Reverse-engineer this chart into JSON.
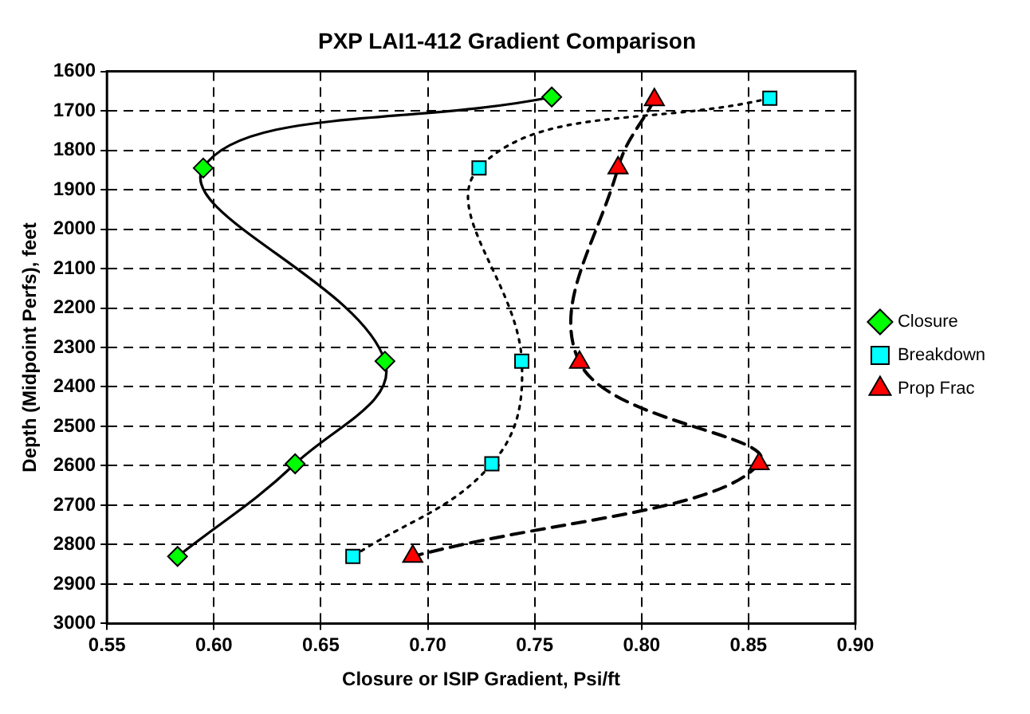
{
  "chart_data": {
    "type": "line",
    "title": "PXP LAI1-412 Gradient Comparison",
    "xlabel": "Closure or ISIP Gradient, Psi/ft",
    "ylabel": "Depth (Midpoint Perfs), feet",
    "series": [
      {
        "name": "Closure",
        "color": "#00ff00",
        "marker": "diamond",
        "line_style": "solid",
        "x": [
          0.758,
          0.595,
          0.68,
          0.638,
          0.583
        ],
        "values": [
          1665,
          1845,
          2335,
          2595,
          2830
        ]
      },
      {
        "name": "Breakdown",
        "color": "#00ffff",
        "marker": "square",
        "line_style": "dotted",
        "x": [
          0.86,
          0.724,
          0.744,
          0.73,
          0.665
        ],
        "values": [
          1668,
          1845,
          2335,
          2595,
          2830
        ]
      },
      {
        "name": "Prop Frac",
        "color": "#ff0000",
        "marker": "triangle",
        "line_style": "dashed",
        "x": [
          0.806,
          0.789,
          0.771,
          0.855,
          0.693
        ],
        "values": [
          1672,
          1845,
          2338,
          2595,
          2830
        ]
      }
    ],
    "xlim": [
      0.55,
      0.9
    ],
    "xticks": [
      {
        "value": 0.55,
        "label": "0.55"
      },
      {
        "value": 0.6,
        "label": "0.60"
      },
      {
        "value": 0.65,
        "label": "0.65"
      },
      {
        "value": 0.7,
        "label": "0.70"
      },
      {
        "value": 0.75,
        "label": "0.75"
      },
      {
        "value": 0.8,
        "label": "0.80"
      },
      {
        "value": 0.85,
        "label": "0.85"
      },
      {
        "value": 0.9,
        "label": "0.90"
      }
    ],
    "ylim": [
      3000,
      1600
    ],
    "yticks": [
      1600,
      1700,
      1800,
      1900,
      2000,
      2100,
      2200,
      2300,
      2400,
      2500,
      2600,
      2700,
      2800,
      2900,
      3000
    ],
    "grid": true,
    "legend": "right"
  }
}
